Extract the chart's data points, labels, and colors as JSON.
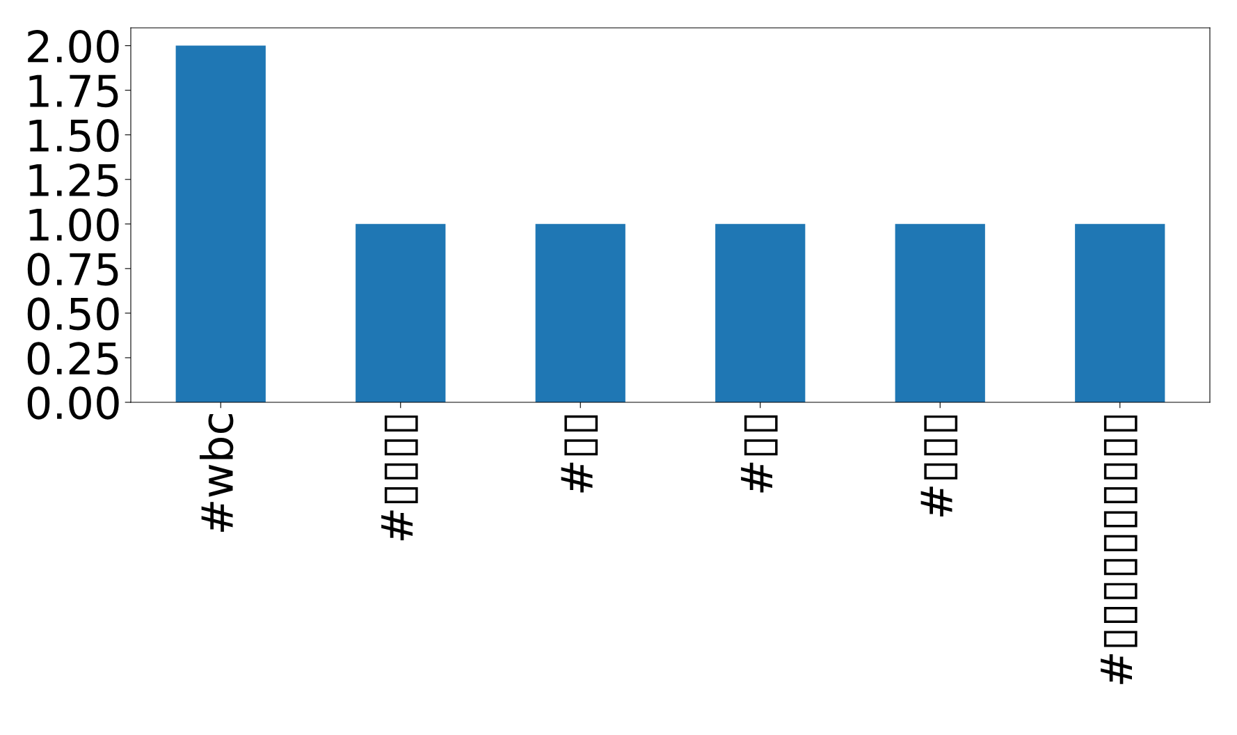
{
  "chart_data": {
    "type": "bar",
    "categories": [
      "#wbc",
      "#▯▯▯▯",
      "#▯▯",
      "#▯▯",
      "#▯▯▯",
      "#▯▯▯▯▯▯▯▯▯▯"
    ],
    "values": [
      2,
      1,
      1,
      1,
      1,
      1
    ],
    "color": "#1f77b4",
    "ylim": [
      0,
      2.1
    ],
    "yticks": [
      {
        "value": 0,
        "label": "0.00"
      },
      {
        "value": 0.25,
        "label": "0.25"
      },
      {
        "value": 0.5,
        "label": "0.50"
      },
      {
        "value": 0.75,
        "label": "0.75"
      },
      {
        "value": 1,
        "label": "1.00"
      },
      {
        "value": 1.25,
        "label": "1.25"
      },
      {
        "value": 1.5,
        "label": "1.50"
      },
      {
        "value": 1.75,
        "label": "1.75"
      },
      {
        "value": 2,
        "label": "2.00"
      }
    ],
    "grid": false,
    "legend": false
  }
}
